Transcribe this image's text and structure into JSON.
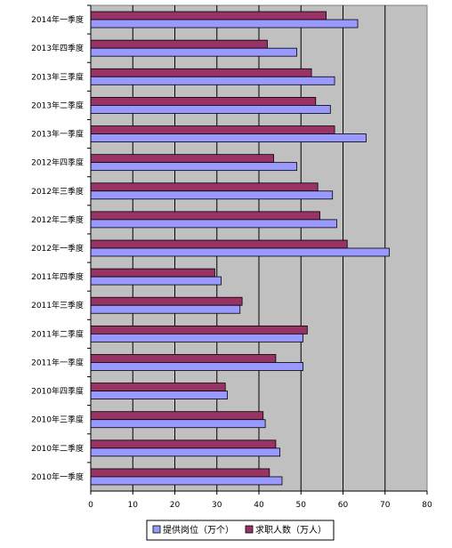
{
  "chart_data": {
    "type": "bar",
    "orientation": "horizontal",
    "categories": [
      "2014年一季度",
      "2013年四季度",
      "2013年三季度",
      "2013年二季度",
      "2013年一季度",
      "2012年四季度",
      "2012年三季度",
      "2012年二季度",
      "2012年一季度",
      "2011年四季度",
      "2011年三季度",
      "2011年二季度",
      "2011年一季度",
      "2010年四季度",
      "2010年三季度",
      "2010年二季度",
      "2010年一季度"
    ],
    "series": [
      {
        "name": "求职人数（万人）",
        "color": "#993366",
        "values": [
          56,
          42,
          52.5,
          53.5,
          58,
          43.5,
          54,
          54.5,
          61,
          29.5,
          36,
          51.5,
          44,
          32,
          41,
          44,
          42.5
        ]
      },
      {
        "name": "提供岗位（万个）",
        "color": "#9999FF",
        "values": [
          63.5,
          49,
          58,
          57,
          65.5,
          49,
          57.5,
          58.5,
          71,
          31,
          35.5,
          50.5,
          50.5,
          32.5,
          41.5,
          45,
          45.5
        ]
      }
    ],
    "xlim": [
      0,
      80
    ],
    "xticks": [
      0,
      10,
      20,
      30,
      40,
      50,
      60,
      70,
      80
    ],
    "grid": "vertical",
    "legend_position": "bottom",
    "legend_order": [
      "提供岗位（万个）",
      "求职人数（万人）"
    ],
    "plot_background": "#C0C0C0"
  }
}
